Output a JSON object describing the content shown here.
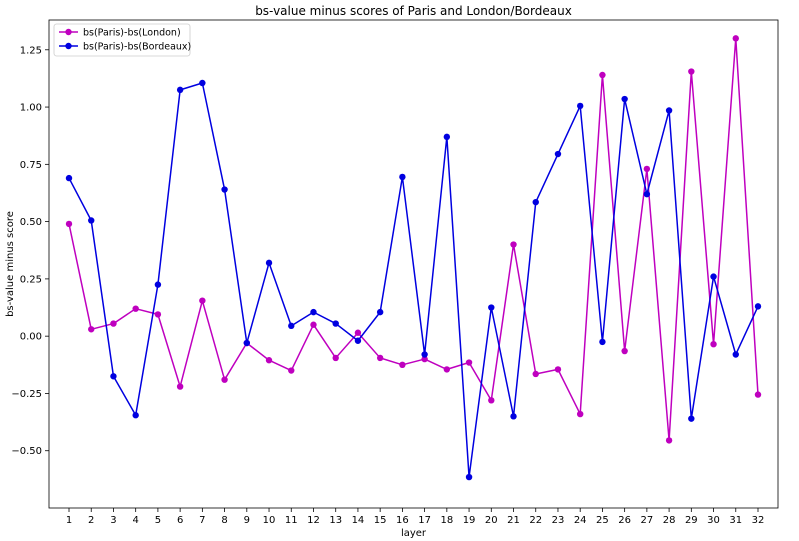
{
  "chart_data": {
    "type": "line",
    "title": "bs-value minus scores of Paris and London/Bordeaux",
    "xlabel": "layer",
    "ylabel": "bs-value minus score",
    "x": [
      1,
      2,
      3,
      4,
      5,
      6,
      7,
      8,
      9,
      10,
      11,
      12,
      13,
      14,
      15,
      16,
      17,
      18,
      19,
      20,
      21,
      22,
      23,
      24,
      25,
      26,
      27,
      28,
      29,
      30,
      31,
      32
    ],
    "x_tick_labels": [
      "1",
      "2",
      "3",
      "4",
      "5",
      "6",
      "7",
      "8",
      "9",
      "10",
      "11",
      "12",
      "13",
      "14",
      "15",
      "16",
      "17",
      "18",
      "19",
      "20",
      "21",
      "22",
      "23",
      "24",
      "25",
      "26",
      "27",
      "28",
      "29",
      "30",
      "31",
      "32"
    ],
    "ylim": [
      -0.75,
      1.38
    ],
    "y_ticks": [
      -0.5,
      -0.25,
      0.0,
      0.25,
      0.5,
      0.75,
      1.0,
      1.25
    ],
    "y_tick_labels": [
      "−0.50",
      "−0.25",
      "0.00",
      "0.25",
      "0.50",
      "0.75",
      "1.00",
      "1.25"
    ],
    "grid": false,
    "legend_position": "top-left",
    "series": [
      {
        "name": "bs(Paris)-bs(London)",
        "color": "#bf00bf",
        "values": [
          0.49,
          0.03,
          0.055,
          0.12,
          0.095,
          -0.22,
          0.155,
          -0.19,
          -0.03,
          -0.105,
          -0.15,
          0.05,
          -0.095,
          0.015,
          -0.095,
          -0.125,
          -0.1,
          -0.145,
          -0.115,
          -0.28,
          0.4,
          -0.165,
          -0.145,
          -0.34,
          1.14,
          -0.065,
          0.73,
          -0.455,
          1.155,
          -0.035,
          1.3,
          -0.255
        ]
      },
      {
        "name": "bs(Paris)-bs(Bordeaux)",
        "color": "#0000e0",
        "values": [
          0.69,
          0.505,
          -0.175,
          -0.345,
          0.225,
          1.075,
          1.105,
          0.64,
          -0.03,
          0.32,
          0.045,
          0.105,
          0.055,
          -0.02,
          0.105,
          0.695,
          -0.08,
          0.87,
          -0.615,
          0.125,
          -0.35,
          0.585,
          0.795,
          1.005,
          -0.025,
          1.035,
          0.62,
          0.985,
          -0.36,
          0.26,
          -0.08,
          0.13
        ]
      }
    ]
  }
}
